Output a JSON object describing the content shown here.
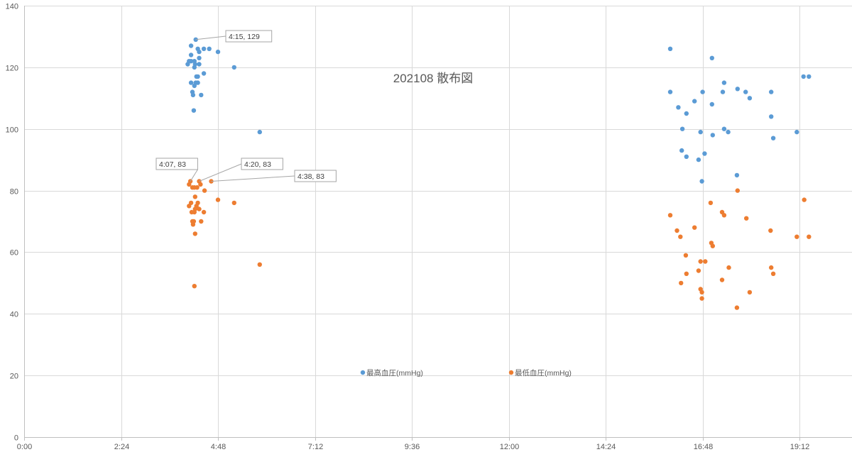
{
  "chart_data": {
    "type": "scatter",
    "title": "202108 散布図",
    "xlabel": "",
    "ylabel": "",
    "xlim": [
      "0:00",
      "19:12+"
    ],
    "ylim": [
      0,
      140
    ],
    "x_ticks": [
      "0:00",
      "2:24",
      "4:48",
      "7:12",
      "9:36",
      "12:00",
      "14:24",
      "16:48",
      "19:12"
    ],
    "y_ticks": [
      0,
      20,
      40,
      60,
      80,
      100,
      120,
      140
    ],
    "grid": true,
    "legend_position": "bottom",
    "series": [
      {
        "name": "最高血圧(mmHg)",
        "color": "#5B9BD5",
        "points": [
          [
            "4:15",
            129
          ],
          [
            "4:08",
            127
          ],
          [
            "4:18",
            126
          ],
          [
            "4:20",
            125
          ],
          [
            "4:27",
            126
          ],
          [
            "4:35",
            126
          ],
          [
            "4:48",
            125
          ],
          [
            "4:08",
            124
          ],
          [
            "4:20",
            123
          ],
          [
            "4:05",
            122
          ],
          [
            "4:08",
            122
          ],
          [
            "4:13",
            122
          ],
          [
            "4:03",
            121
          ],
          [
            "4:14",
            121
          ],
          [
            "4:20",
            121
          ],
          [
            "4:13",
            120
          ],
          [
            "5:12",
            120
          ],
          [
            "4:16",
            117
          ],
          [
            "4:18",
            117
          ],
          [
            "4:27",
            118
          ],
          [
            "4:08",
            115
          ],
          [
            "4:15",
            115
          ],
          [
            "4:18",
            115
          ],
          [
            "4:13",
            114
          ],
          [
            "4:10",
            112
          ],
          [
            "4:11",
            111
          ],
          [
            "4:23",
            111
          ],
          [
            "4:12",
            106
          ],
          [
            "5:50",
            99
          ],
          [
            "16:00",
            126
          ],
          [
            "16:00",
            112
          ],
          [
            "16:12",
            107
          ],
          [
            "16:18",
            100
          ],
          [
            "16:24",
            105
          ],
          [
            "16:36",
            109
          ],
          [
            "16:17",
            93
          ],
          [
            "16:24",
            91
          ],
          [
            "16:45",
            99
          ],
          [
            "16:42",
            90
          ],
          [
            "16:48",
            112
          ],
          [
            "16:51",
            92
          ],
          [
            "16:47",
            83
          ],
          [
            "17:02",
            123
          ],
          [
            "17:02",
            108
          ],
          [
            "17:03",
            98
          ],
          [
            "17:18",
            112
          ],
          [
            "17:20",
            115
          ],
          [
            "17:20",
            100
          ],
          [
            "17:26",
            99
          ],
          [
            "17:40",
            113
          ],
          [
            "17:52",
            112
          ],
          [
            "17:58",
            110
          ],
          [
            "17:39",
            85
          ],
          [
            "18:30",
            112
          ],
          [
            "18:30",
            104
          ],
          [
            "18:33",
            97
          ],
          [
            "19:08",
            99
          ],
          [
            "19:18",
            117
          ],
          [
            "19:26",
            117
          ]
        ]
      },
      {
        "name": "最低血圧(mmHg)",
        "color": "#ED7D31",
        "points": [
          [
            "4:07",
            83
          ],
          [
            "4:20",
            83
          ],
          [
            "4:38",
            83
          ],
          [
            "4:05",
            82
          ],
          [
            "4:10",
            81
          ],
          [
            "4:13",
            81
          ],
          [
            "4:17",
            81
          ],
          [
            "4:22",
            82
          ],
          [
            "4:28",
            80
          ],
          [
            "4:14",
            78
          ],
          [
            "4:18",
            76
          ],
          [
            "4:05",
            75
          ],
          [
            "4:08",
            76
          ],
          [
            "4:16",
            75
          ],
          [
            "4:20",
            74
          ],
          [
            "4:14",
            74
          ],
          [
            "4:09",
            73
          ],
          [
            "4:27",
            73
          ],
          [
            "4:13",
            73
          ],
          [
            "4:48",
            77
          ],
          [
            "5:12",
            76
          ],
          [
            "4:10",
            70
          ],
          [
            "4:12",
            70
          ],
          [
            "4:23",
            70
          ],
          [
            "4:11",
            69
          ],
          [
            "4:14",
            66
          ],
          [
            "5:50",
            56
          ],
          [
            "4:13",
            49
          ],
          [
            "16:00",
            72
          ],
          [
            "16:10",
            67
          ],
          [
            "16:15",
            65
          ],
          [
            "16:36",
            68
          ],
          [
            "16:23",
            59
          ],
          [
            "17:00",
            76
          ],
          [
            "17:01",
            63
          ],
          [
            "17:03",
            62
          ],
          [
            "16:42",
            54
          ],
          [
            "16:45",
            57
          ],
          [
            "16:52",
            57
          ],
          [
            "16:24",
            53
          ],
          [
            "16:16",
            50
          ],
          [
            "16:45",
            48
          ],
          [
            "16:47",
            47
          ],
          [
            "16:47",
            45
          ],
          [
            "17:17",
            73
          ],
          [
            "17:20",
            72
          ],
          [
            "17:27",
            55
          ],
          [
            "17:17",
            51
          ],
          [
            "17:40",
            80
          ],
          [
            "17:53",
            71
          ],
          [
            "17:39",
            42
          ],
          [
            "17:58",
            47
          ],
          [
            "18:29",
            67
          ],
          [
            "18:30",
            55
          ],
          [
            "18:33",
            53
          ],
          [
            "19:08",
            65
          ],
          [
            "19:19",
            77
          ],
          [
            "19:26",
            65
          ]
        ]
      }
    ],
    "annotations": [
      {
        "text": "4:15, 129",
        "series": 0,
        "x": "4:15",
        "y": 129
      },
      {
        "text": "4:07, 83",
        "series": 1,
        "x": "4:07",
        "y": 83
      },
      {
        "text": "4:20, 83",
        "series": 1,
        "x": "4:20",
        "y": 83
      },
      {
        "text": "4:38, 83",
        "series": 1,
        "x": "4:38",
        "y": 83
      }
    ]
  }
}
